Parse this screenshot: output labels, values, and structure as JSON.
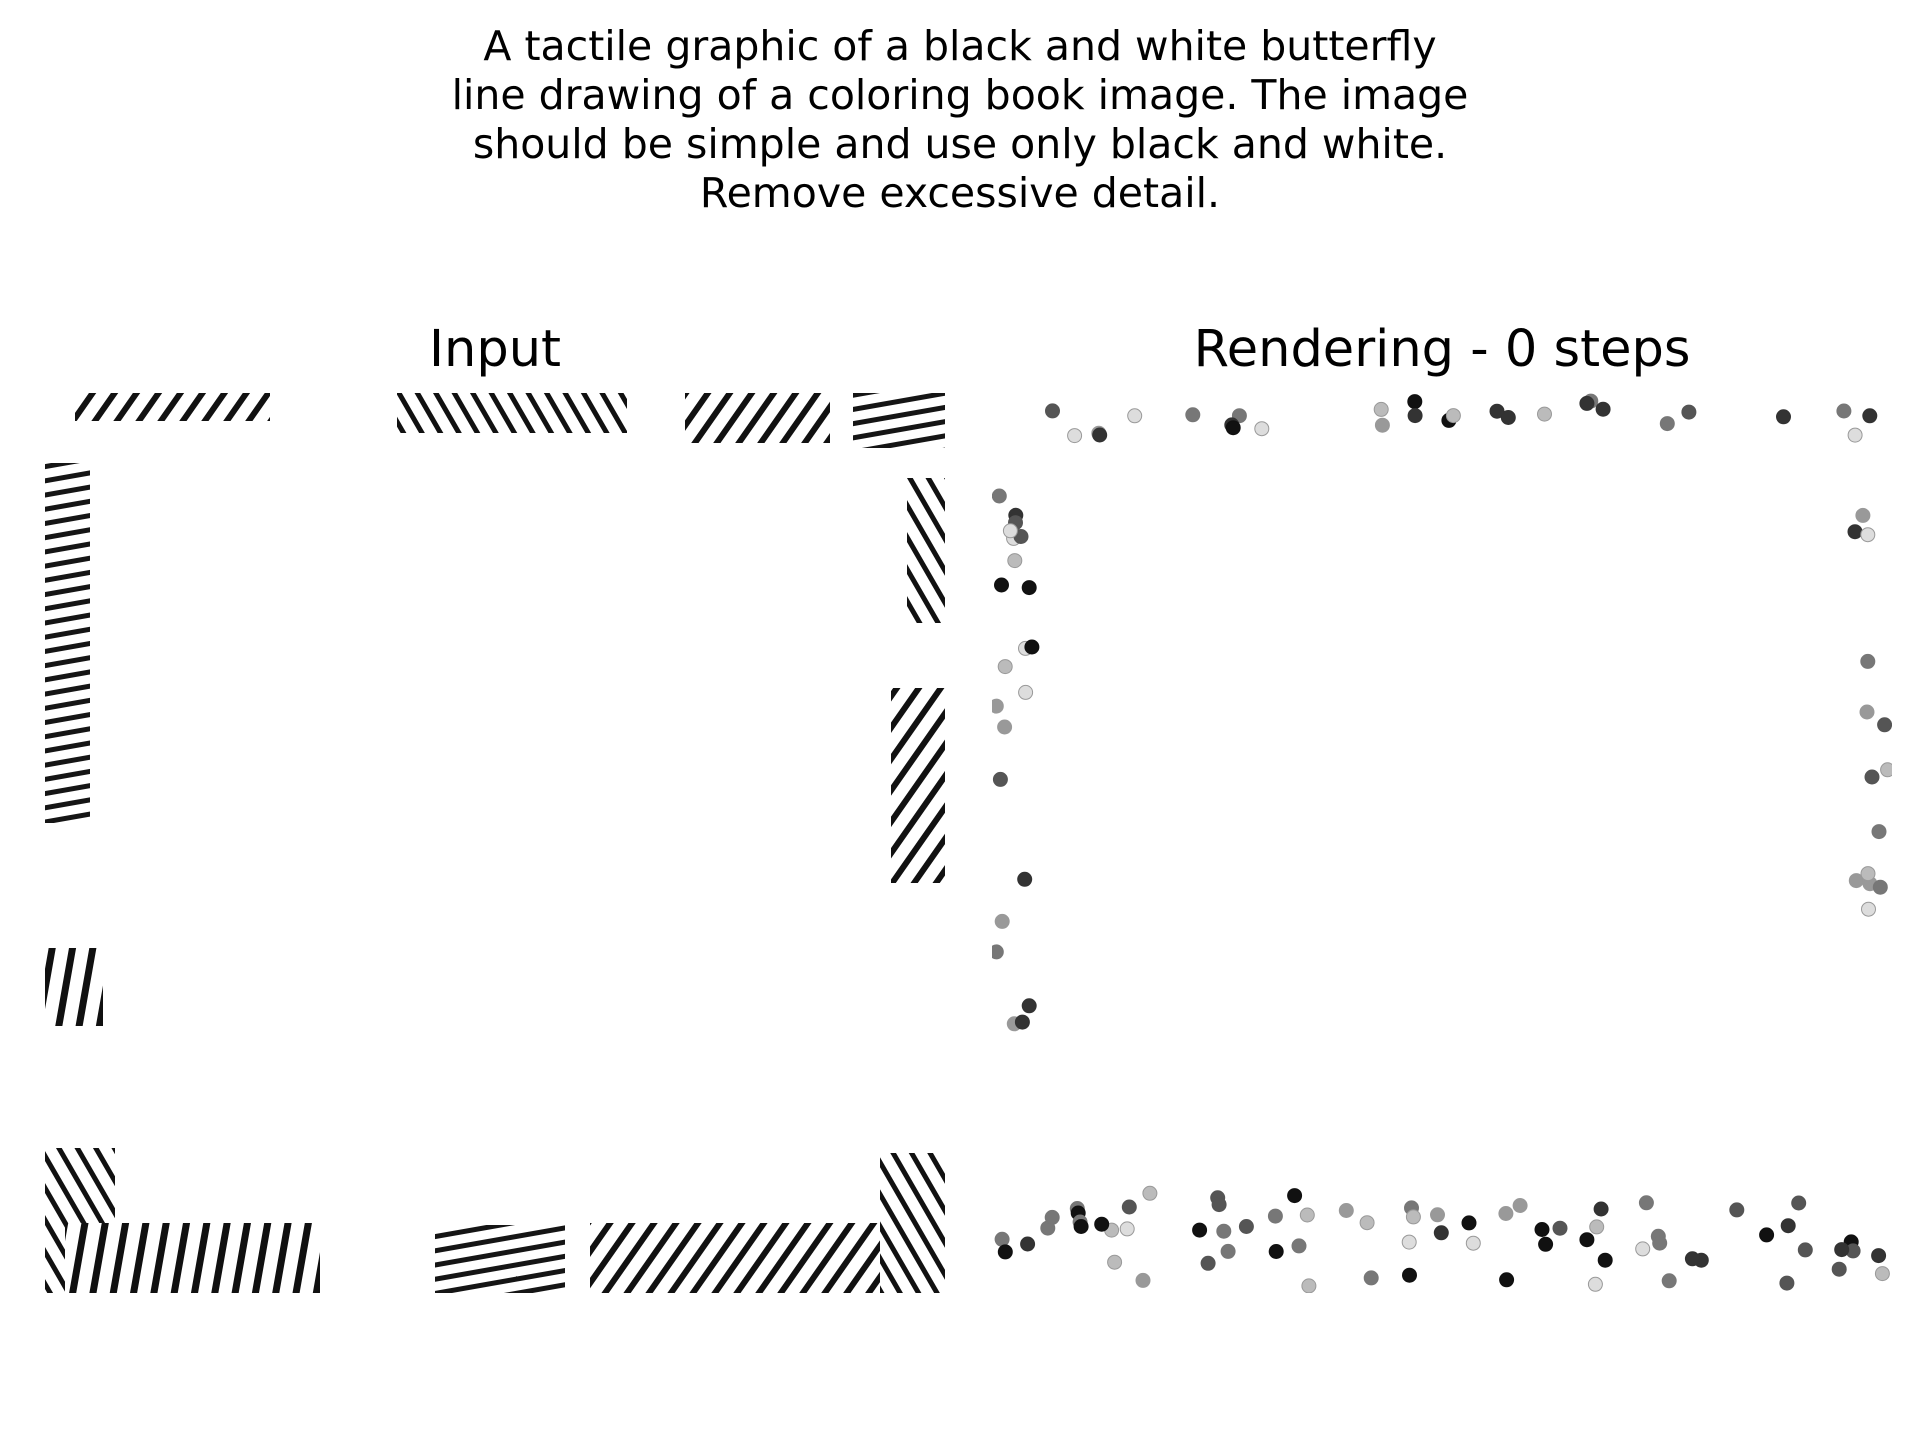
{
  "prompt_lines": [
    "A tactile graphic of a black and white butterfly",
    "line drawing of a coloring book image. The image",
    "should be simple and use only black and white.",
    "Remove excessive detail."
  ],
  "panels": {
    "input": {
      "title": "Input"
    },
    "rendering": {
      "title": "Rendering - 0 steps"
    }
  }
}
